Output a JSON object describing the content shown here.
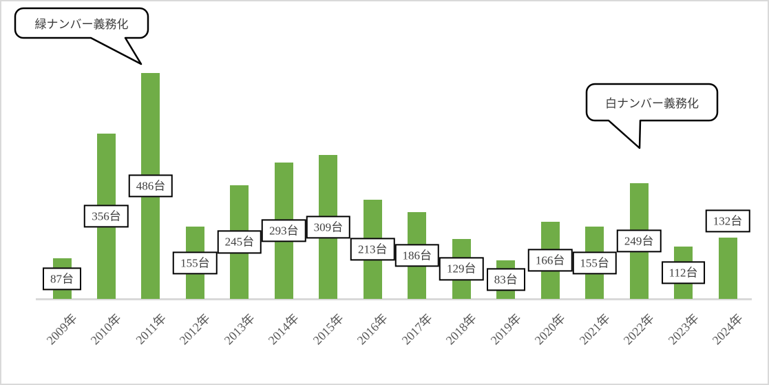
{
  "chart_data": {
    "type": "bar",
    "title": "",
    "xlabel": "",
    "ylabel": "",
    "categories": [
      "2009年",
      "2010年",
      "2011年",
      "2012年",
      "2013年",
      "2014年",
      "2015年",
      "2016年",
      "2017年",
      "2018年",
      "2019年",
      "2020年",
      "2021年",
      "2022年",
      "2023年",
      "2024年"
    ],
    "values": [
      87,
      356,
      486,
      155,
      245,
      293,
      309,
      213,
      186,
      129,
      83,
      166,
      155,
      249,
      112,
      132
    ],
    "data_labels": [
      "87台",
      "356台",
      "486台",
      "155台",
      "245台",
      "293台",
      "309台",
      "213台",
      "186台",
      "129台",
      "83台",
      "166台",
      "155台",
      "249台",
      "112台",
      "132台"
    ],
    "data_label_suffix": "台",
    "ylim": [
      0,
      500
    ],
    "gridlines": false,
    "y_axis_visible": false,
    "x_tick_rotation": 45,
    "legend_position": "none",
    "label_placement_default": "center",
    "label_placement_overrides": {
      "15": "outside-end"
    },
    "bar_color": "#70ad47",
    "axis_line_color": "#d9d9d9",
    "tick_label_color": "#595959",
    "data_label_text_color": "#404040",
    "annotations": [
      {
        "text": "緑ナンバー義務化",
        "target_category": "2011年"
      },
      {
        "text": "白ナンバー義務化",
        "target_category": "2022年"
      }
    ]
  }
}
